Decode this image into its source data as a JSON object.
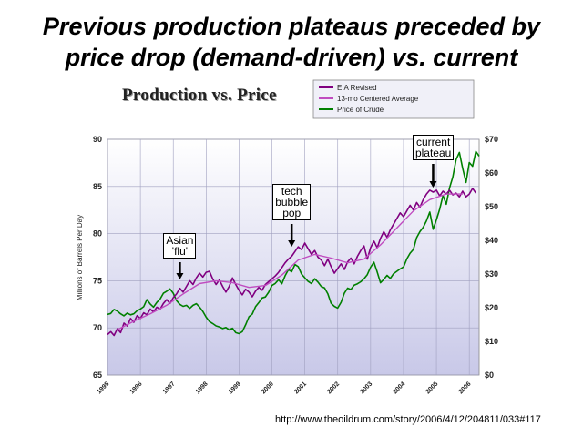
{
  "slide": {
    "title_line1": "Previous production plateaus preceded by",
    "title_line2": "price drop (demand-driven) vs. current",
    "source": "http://www.theoildrum.com/story/2006/4/12/204811/033#117"
  },
  "chart_data": {
    "type": "line",
    "title": "Production vs. Price",
    "ylabel": "Millions of Barrels Per Day",
    "ylim": [
      65,
      90
    ],
    "y2lim": [
      0,
      70
    ],
    "x_ticks": [
      "1995",
      "1996",
      "1997",
      "1998",
      "1999",
      "2000",
      "2001",
      "2002",
      "2003",
      "2004",
      "2005",
      "2006"
    ],
    "y_ticks": [
      "65",
      "70",
      "75",
      "80",
      "85",
      "90"
    ],
    "y2_ticks": [
      "$0",
      "$10",
      "$20",
      "$30",
      "$40",
      "$50",
      "$60",
      "$70"
    ],
    "legend_position": "top-right",
    "grid": true,
    "series": [
      {
        "name": "EIA Revised",
        "axis": "left",
        "color": "#800080",
        "points": [
          [
            1995.0,
            69.3
          ],
          [
            1995.1,
            69.6
          ],
          [
            1995.2,
            69.2
          ],
          [
            1995.3,
            69.9
          ],
          [
            1995.4,
            69.5
          ],
          [
            1995.5,
            70.5
          ],
          [
            1995.6,
            70.2
          ],
          [
            1995.7,
            71.0
          ],
          [
            1995.8,
            70.6
          ],
          [
            1995.9,
            71.3
          ],
          [
            1996.0,
            71.0
          ],
          [
            1996.1,
            71.6
          ],
          [
            1996.2,
            71.4
          ],
          [
            1996.3,
            72.0
          ],
          [
            1996.4,
            71.7
          ],
          [
            1996.5,
            72.2
          ],
          [
            1996.6,
            72.0
          ],
          [
            1996.7,
            72.6
          ],
          [
            1996.8,
            73.0
          ],
          [
            1996.9,
            72.6
          ],
          [
            1997.0,
            73.2
          ],
          [
            1997.1,
            73.6
          ],
          [
            1997.2,
            74.2
          ],
          [
            1997.3,
            73.8
          ],
          [
            1997.4,
            74.4
          ],
          [
            1997.5,
            75.0
          ],
          [
            1997.6,
            74.6
          ],
          [
            1997.7,
            75.3
          ],
          [
            1997.8,
            75.8
          ],
          [
            1997.9,
            75.4
          ],
          [
            1998.0,
            75.9
          ],
          [
            1998.1,
            76.0
          ],
          [
            1998.2,
            75.2
          ],
          [
            1998.3,
            74.6
          ],
          [
            1998.4,
            75.1
          ],
          [
            1998.5,
            74.4
          ],
          [
            1998.6,
            73.8
          ],
          [
            1998.7,
            74.4
          ],
          [
            1998.8,
            75.3
          ],
          [
            1998.9,
            74.6
          ],
          [
            1999.0,
            74.0
          ],
          [
            1999.1,
            73.5
          ],
          [
            1999.2,
            74.1
          ],
          [
            1999.3,
            73.8
          ],
          [
            1999.4,
            73.3
          ],
          [
            1999.5,
            73.9
          ],
          [
            1999.6,
            74.3
          ],
          [
            1999.7,
            74.0
          ],
          [
            1999.8,
            74.6
          ],
          [
            1999.9,
            74.9
          ],
          [
            2000.0,
            75.2
          ],
          [
            2000.1,
            75.5
          ],
          [
            2000.2,
            75.9
          ],
          [
            2000.3,
            76.4
          ],
          [
            2000.4,
            76.9
          ],
          [
            2000.5,
            77.3
          ],
          [
            2000.6,
            77.6
          ],
          [
            2000.7,
            78.1
          ],
          [
            2000.8,
            78.6
          ],
          [
            2000.9,
            78.3
          ],
          [
            2001.0,
            79.0
          ],
          [
            2001.1,
            78.4
          ],
          [
            2001.2,
            77.8
          ],
          [
            2001.3,
            78.2
          ],
          [
            2001.4,
            77.5
          ],
          [
            2001.5,
            77.2
          ],
          [
            2001.6,
            76.6
          ],
          [
            2001.7,
            77.3
          ],
          [
            2001.8,
            76.5
          ],
          [
            2001.9,
            75.8
          ],
          [
            2002.0,
            76.3
          ],
          [
            2002.1,
            76.8
          ],
          [
            2002.2,
            76.2
          ],
          [
            2002.3,
            77.0
          ],
          [
            2002.4,
            77.4
          ],
          [
            2002.5,
            76.8
          ],
          [
            2002.6,
            77.6
          ],
          [
            2002.7,
            78.2
          ],
          [
            2002.8,
            78.7
          ],
          [
            2002.9,
            77.3
          ],
          [
            2003.0,
            78.5
          ],
          [
            2003.1,
            79.2
          ],
          [
            2003.2,
            78.5
          ],
          [
            2003.3,
            79.5
          ],
          [
            2003.4,
            80.2
          ],
          [
            2003.5,
            79.6
          ],
          [
            2003.6,
            80.4
          ],
          [
            2003.7,
            81.0
          ],
          [
            2003.8,
            81.6
          ],
          [
            2003.9,
            82.2
          ],
          [
            2004.0,
            81.8
          ],
          [
            2004.1,
            82.4
          ],
          [
            2004.2,
            83.0
          ],
          [
            2004.3,
            82.5
          ],
          [
            2004.4,
            83.3
          ],
          [
            2004.5,
            82.8
          ],
          [
            2004.6,
            83.6
          ],
          [
            2004.7,
            84.2
          ],
          [
            2004.8,
            84.6
          ],
          [
            2004.9,
            84.4
          ],
          [
            2005.0,
            84.6
          ],
          [
            2005.1,
            84.0
          ],
          [
            2005.2,
            84.5
          ],
          [
            2005.3,
            84.2
          ],
          [
            2005.4,
            84.6
          ],
          [
            2005.5,
            84.1
          ],
          [
            2005.6,
            84.3
          ],
          [
            2005.7,
            83.9
          ],
          [
            2005.8,
            84.5
          ],
          [
            2005.9,
            83.9
          ],
          [
            2006.0,
            84.2
          ],
          [
            2006.1,
            84.8
          ],
          [
            2006.2,
            84.3
          ]
        ]
      },
      {
        "name": "13-mo Centered Average",
        "axis": "left",
        "color": "#c04cc0",
        "points": [
          [
            1995.3,
            69.8
          ],
          [
            1995.8,
            70.7
          ],
          [
            1996.3,
            71.5
          ],
          [
            1996.8,
            72.4
          ],
          [
            1997.3,
            73.6
          ],
          [
            1997.8,
            74.7
          ],
          [
            1998.3,
            75.0
          ],
          [
            1998.8,
            74.8
          ],
          [
            1999.3,
            74.3
          ],
          [
            1999.8,
            74.5
          ],
          [
            2000.3,
            75.6
          ],
          [
            2000.8,
            77.2
          ],
          [
            2001.3,
            77.8
          ],
          [
            2001.8,
            77.4
          ],
          [
            2002.3,
            76.9
          ],
          [
            2002.8,
            77.3
          ],
          [
            2003.3,
            78.8
          ],
          [
            2003.8,
            80.6
          ],
          [
            2004.3,
            82.4
          ],
          [
            2004.8,
            83.6
          ],
          [
            2005.3,
            84.2
          ],
          [
            2005.8,
            84.2
          ]
        ]
      },
      {
        "name": "Price of Crude",
        "axis": "right",
        "color": "#008000",
        "points": [
          [
            1995.0,
            18.0
          ],
          [
            1995.1,
            18.3
          ],
          [
            1995.2,
            19.5
          ],
          [
            1995.3,
            19.0
          ],
          [
            1995.4,
            18.2
          ],
          [
            1995.5,
            17.6
          ],
          [
            1995.6,
            18.4
          ],
          [
            1995.7,
            17.9
          ],
          [
            1995.8,
            18.2
          ],
          [
            1995.9,
            19.1
          ],
          [
            1996.0,
            19.6
          ],
          [
            1996.1,
            20.3
          ],
          [
            1996.2,
            22.4
          ],
          [
            1996.3,
            21.1
          ],
          [
            1996.4,
            20.2
          ],
          [
            1996.5,
            21.6
          ],
          [
            1996.6,
            22.6
          ],
          [
            1996.7,
            24.3
          ],
          [
            1996.8,
            24.9
          ],
          [
            1996.9,
            25.6
          ],
          [
            1997.0,
            24.3
          ],
          [
            1997.1,
            22.1
          ],
          [
            1997.2,
            21.0
          ],
          [
            1997.3,
            20.4
          ],
          [
            1997.4,
            20.7
          ],
          [
            1997.5,
            19.8
          ],
          [
            1997.6,
            20.7
          ],
          [
            1997.7,
            21.2
          ],
          [
            1997.8,
            20.2
          ],
          [
            1997.9,
            18.9
          ],
          [
            1998.0,
            17.2
          ],
          [
            1998.1,
            15.9
          ],
          [
            1998.2,
            15.3
          ],
          [
            1998.3,
            14.6
          ],
          [
            1998.4,
            14.3
          ],
          [
            1998.5,
            13.8
          ],
          [
            1998.6,
            14.1
          ],
          [
            1998.7,
            13.4
          ],
          [
            1998.8,
            13.9
          ],
          [
            1998.9,
            12.6
          ],
          [
            1999.0,
            12.3
          ],
          [
            1999.1,
            12.9
          ],
          [
            1999.2,
            14.9
          ],
          [
            1999.3,
            17.3
          ],
          [
            1999.4,
            18.1
          ],
          [
            1999.5,
            20.3
          ],
          [
            1999.6,
            21.5
          ],
          [
            1999.7,
            22.9
          ],
          [
            1999.8,
            23.2
          ],
          [
            1999.9,
            24.6
          ],
          [
            2000.0,
            26.6
          ],
          [
            2000.1,
            27.2
          ],
          [
            2000.2,
            28.3
          ],
          [
            2000.3,
            27.1
          ],
          [
            2000.4,
            29.5
          ],
          [
            2000.5,
            31.3
          ],
          [
            2000.6,
            30.7
          ],
          [
            2000.7,
            32.8
          ],
          [
            2000.8,
            32.2
          ],
          [
            2000.9,
            30.0
          ],
          [
            2001.0,
            28.9
          ],
          [
            2001.1,
            27.8
          ],
          [
            2001.2,
            27.2
          ],
          [
            2001.3,
            28.6
          ],
          [
            2001.4,
            27.6
          ],
          [
            2001.5,
            26.3
          ],
          [
            2001.6,
            25.9
          ],
          [
            2001.7,
            24.1
          ],
          [
            2001.8,
            21.3
          ],
          [
            2001.9,
            20.4
          ],
          [
            2002.0,
            19.9
          ],
          [
            2002.1,
            21.6
          ],
          [
            2002.2,
            24.3
          ],
          [
            2002.3,
            25.8
          ],
          [
            2002.4,
            25.4
          ],
          [
            2002.5,
            26.7
          ],
          [
            2002.6,
            27.1
          ],
          [
            2002.7,
            27.7
          ],
          [
            2002.8,
            28.6
          ],
          [
            2002.9,
            29.8
          ],
          [
            2003.0,
            32.0
          ],
          [
            2003.1,
            33.5
          ],
          [
            2003.2,
            30.6
          ],
          [
            2003.3,
            27.4
          ],
          [
            2003.4,
            28.4
          ],
          [
            2003.5,
            29.6
          ],
          [
            2003.6,
            28.7
          ],
          [
            2003.7,
            30.1
          ],
          [
            2003.8,
            30.8
          ],
          [
            2003.9,
            31.5
          ],
          [
            2004.0,
            32.1
          ],
          [
            2004.1,
            34.5
          ],
          [
            2004.2,
            36.2
          ],
          [
            2004.3,
            37.3
          ],
          [
            2004.4,
            40.8
          ],
          [
            2004.5,
            42.6
          ],
          [
            2004.6,
            43.9
          ],
          [
            2004.7,
            45.8
          ],
          [
            2004.8,
            48.4
          ],
          [
            2004.9,
            43.3
          ],
          [
            2005.0,
            46.1
          ],
          [
            2005.1,
            49.3
          ],
          [
            2005.2,
            53.3
          ],
          [
            2005.3,
            50.7
          ],
          [
            2005.4,
            55.6
          ],
          [
            2005.5,
            58.8
          ],
          [
            2005.6,
            64.0
          ],
          [
            2005.7,
            66.1
          ],
          [
            2005.8,
            61.4
          ],
          [
            2005.9,
            57.2
          ],
          [
            2006.0,
            63.1
          ],
          [
            2006.1,
            62.0
          ],
          [
            2006.2,
            66.4
          ],
          [
            2006.3,
            65.0
          ]
        ]
      }
    ],
    "annotations": [
      {
        "name": "asian-flu",
        "text": "Asian\n'flu'",
        "x": 1997.2
      },
      {
        "name": "tech-bubble",
        "text": "tech\nbubble\npop",
        "x": 2000.6
      },
      {
        "name": "current-plateau",
        "text": "current\nplateau",
        "x": 2004.9
      }
    ]
  }
}
